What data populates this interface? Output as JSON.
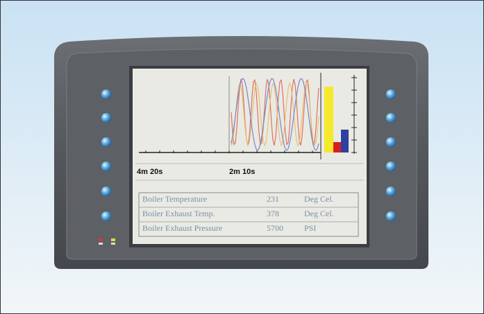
{
  "screen": {
    "time_labels": [
      "4m 20s",
      "2m 10s"
    ],
    "table": {
      "rows": [
        [
          "Boiler Temperature",
          "231",
          "Deg Cel."
        ],
        [
          "Boiler Exhaust Temp.",
          "378",
          "Deg Cel."
        ],
        [
          "Boiler Exhaust Pressure",
          "5700",
          "PSI"
        ]
      ]
    }
  }
}
